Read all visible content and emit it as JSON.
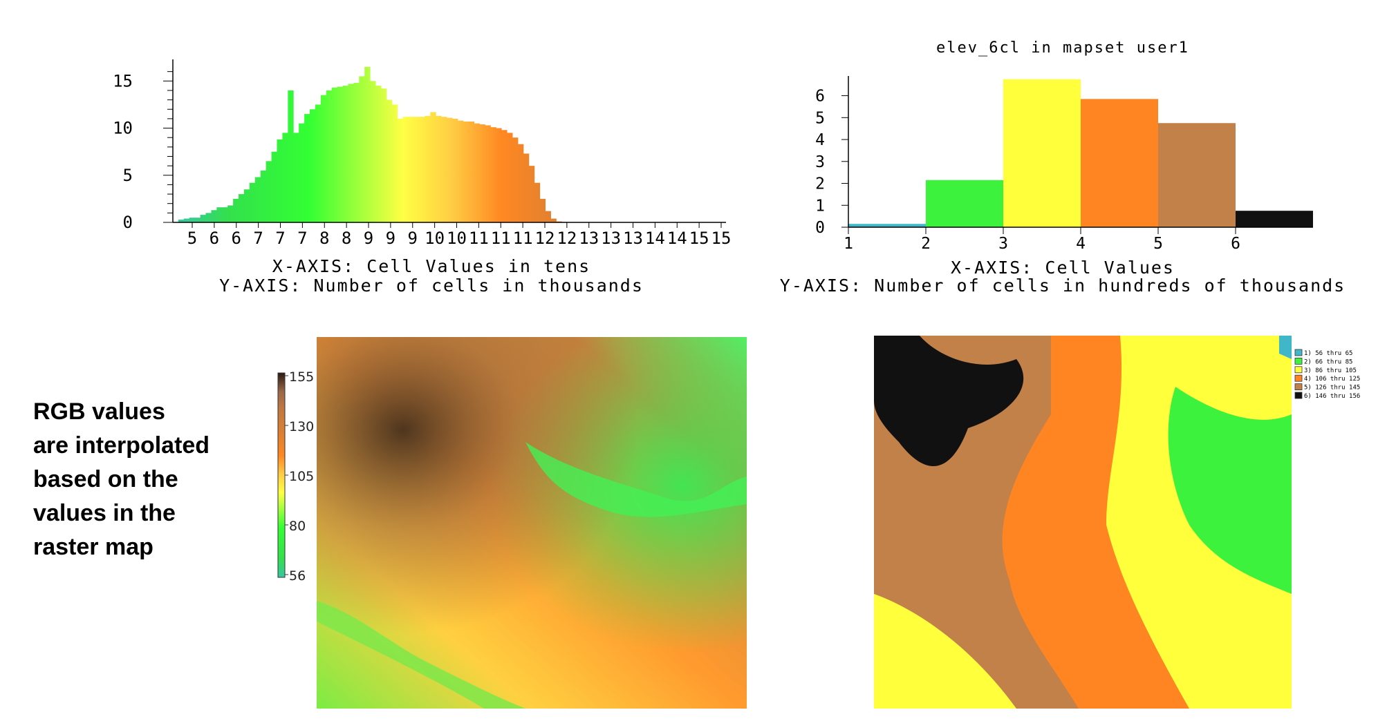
{
  "annotation": {
    "lines": [
      "RGB values",
      "are interpolated",
      "based on the",
      "values in the",
      "raster map"
    ]
  },
  "colors": {
    "ramp": [
      {
        "v": 56,
        "hex": "#36c7a3"
      },
      {
        "v": 65,
        "hex": "#33e04d"
      },
      {
        "v": 80,
        "hex": "#33ff33"
      },
      {
        "v": 97,
        "hex": "#ffff44"
      },
      {
        "v": 106,
        "hex": "#ffcc44"
      },
      {
        "v": 115,
        "hex": "#ff8822"
      },
      {
        "v": 125,
        "hex": "#e08030"
      },
      {
        "v": 138,
        "hex": "#c07840"
      },
      {
        "v": 146,
        "hex": "#9a6848"
      },
      {
        "v": 155,
        "hex": "#2a1a10"
      }
    ]
  },
  "chart_data": [
    {
      "type": "bar",
      "title": "",
      "xlabel": "X-AXIS: Cell Values in tens",
      "ylabel": "Y-AXIS: Number of cells in thousands",
      "x_tick_labels": [
        "5",
        "6",
        "6",
        "7",
        "7",
        "7",
        "8",
        "8",
        "9",
        "9",
        "9",
        "10",
        "10",
        "11",
        "11",
        "11",
        "12",
        "12",
        "13",
        "13",
        "13",
        "14",
        "14",
        "15",
        "15"
      ],
      "y_ticks": [
        0,
        5,
        10,
        15
      ],
      "ylim": [
        0,
        17
      ],
      "xlim": [
        55,
        156
      ],
      "grid": false,
      "x": [
        56,
        57,
        58,
        59,
        60,
        61,
        62,
        63,
        64,
        65,
        66,
        67,
        68,
        69,
        70,
        71,
        72,
        73,
        74,
        75,
        76,
        77,
        78,
        79,
        80,
        81,
        82,
        83,
        84,
        85,
        86,
        87,
        88,
        89,
        90,
        91,
        92,
        93,
        94,
        95,
        96,
        97,
        98,
        99,
        100,
        101,
        102,
        103,
        104,
        105,
        106,
        107,
        108,
        109,
        110,
        111,
        112,
        113,
        114,
        115,
        116,
        117,
        118,
        119,
        120,
        121,
        122,
        123,
        124,
        125,
        126,
        127,
        128,
        129,
        130,
        131,
        132,
        133,
        134,
        135,
        136,
        137,
        138,
        139,
        140,
        141,
        142,
        143,
        144,
        145,
        146,
        147,
        148,
        149,
        150,
        151,
        152,
        153,
        154,
        155
      ],
      "values": [
        0.3,
        0.4,
        0.5,
        0.5,
        0.8,
        1.0,
        1.3,
        1.6,
        1.6,
        1.8,
        2.5,
        3.0,
        3.5,
        4.2,
        4.8,
        5.5,
        6.5,
        7.5,
        8.8,
        9.5,
        14.0,
        9.5,
        10.5,
        11.5,
        12.0,
        12.5,
        13.5,
        14.0,
        14.3,
        14.4,
        14.5,
        14.7,
        14.8,
        15.5,
        16.5,
        15.0,
        14.5,
        14.2,
        13.0,
        12.5,
        11.0,
        11.2,
        11.2,
        11.2,
        11.2,
        11.3,
        11.7,
        11.3,
        11.2,
        11.1,
        11.0,
        10.8,
        10.7,
        10.7,
        10.5,
        10.4,
        10.3,
        10.1,
        10.0,
        9.8,
        9.5,
        9.0,
        8.3,
        7.3,
        6.0,
        4.2,
        2.5,
        1.2,
        0.4,
        0.1,
        0.05,
        0.02,
        0.01,
        0.01,
        0.01,
        0.01,
        0.01,
        0.01,
        0.01,
        0.01,
        0.01,
        0.01,
        0.01,
        0.01,
        0.01,
        0.01,
        0.01,
        0.01,
        0.01,
        0.01,
        0.01,
        0.01,
        0.01,
        0.01,
        0.01,
        0.01,
        0.01,
        0.01,
        0.01,
        0.01
      ]
    },
    {
      "type": "bar",
      "title": "elev_6cl in mapset user1",
      "xlabel": "X-AXIS: Cell Values",
      "ylabel": "Y-AXIS: Number of cells in hundreds of thousands",
      "categories": [
        "1",
        "2",
        "3",
        "4",
        "5",
        "6"
      ],
      "values": [
        0.15,
        2.15,
        6.75,
        5.85,
        4.75,
        0.75
      ],
      "bar_colors": [
        "#3fb7c9",
        "#3cf23c",
        "#ffff3c",
        "#ff8422",
        "#c3814a",
        "#111111"
      ],
      "y_ticks": [
        0,
        1,
        2,
        3,
        4,
        5,
        6
      ],
      "ylim": [
        0,
        7
      ],
      "grid": false
    }
  ],
  "legend_ramp": {
    "labels": [
      "155",
      "130",
      "105",
      "80",
      "56"
    ]
  },
  "legend_classes": {
    "items": [
      {
        "label": "1) 56 thru 65",
        "color": "#3fb7c9"
      },
      {
        "label": "2) 66 thru 85",
        "color": "#3cf23c"
      },
      {
        "label": "3) 86 thru 105",
        "color": "#ffff3c"
      },
      {
        "label": "4) 106 thru 125",
        "color": "#ff8422"
      },
      {
        "label": "5) 126 thru 145",
        "color": "#c3814a"
      },
      {
        "label": "6) 146 thru 156",
        "color": "#111111"
      }
    ]
  }
}
